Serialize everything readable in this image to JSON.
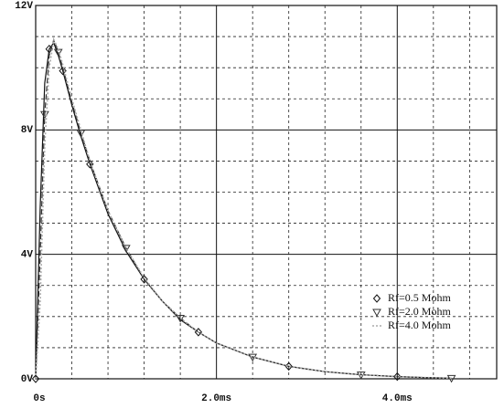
{
  "chart_data": {
    "type": "line",
    "x": [
      0,
      0.05,
      0.1,
      0.15,
      0.2,
      0.25,
      0.3,
      0.4,
      0.5,
      0.6,
      0.8,
      1.0,
      1.2,
      1.4,
      1.6,
      1.8,
      2.0,
      2.4,
      2.8,
      3.2,
      3.6,
      4.0,
      4.3,
      4.6
    ],
    "series": [
      {
        "name": "Rf=0.5 Mohm",
        "color": "#111111",
        "marker": "diamond",
        "dash": "none",
        "values": [
          0,
          5.5,
          9.5,
          10.6,
          10.8,
          10.4,
          9.9,
          8.8,
          7.8,
          6.9,
          5.3,
          4.1,
          3.2,
          2.5,
          1.9,
          1.5,
          1.15,
          0.7,
          0.4,
          0.23,
          0.13,
          0.07,
          0.04,
          0.02
        ]
      },
      {
        "name": "Rf=2.0 Mohm",
        "color": "#333333",
        "marker": "triangle",
        "dash": "6 3",
        "values": [
          0,
          4.0,
          8.5,
          10.4,
          10.9,
          10.5,
          10.0,
          8.9,
          7.9,
          7.0,
          5.4,
          4.2,
          3.2,
          2.5,
          1.95,
          1.5,
          1.15,
          0.7,
          0.4,
          0.23,
          0.13,
          0.07,
          0.04,
          0.02
        ]
      },
      {
        "name": "Rf=4.0 Mohm",
        "color": "#aaaaaa",
        "marker": null,
        "dash": "2 2",
        "values": [
          0,
          2.5,
          7.5,
          10.0,
          10.9,
          10.6,
          10.1,
          9.0,
          8.0,
          7.0,
          5.4,
          4.2,
          3.25,
          2.5,
          1.95,
          1.5,
          1.15,
          0.7,
          0.4,
          0.23,
          0.13,
          0.07,
          0.04,
          0.02
        ]
      }
    ],
    "xlim": [
      0,
      5.1
    ],
    "ylim": [
      0,
      12
    ],
    "xticks": [
      {
        "value": 0,
        "label": "0s"
      },
      {
        "value": 2,
        "label": "2.0ms"
      },
      {
        "value": 4,
        "label": "4.0ms"
      }
    ],
    "yticks": [
      {
        "value": 0,
        "label": "0V"
      },
      {
        "value": 4,
        "label": "4V"
      },
      {
        "value": 8,
        "label": "8V"
      },
      {
        "value": 12,
        "label": "12V"
      }
    ],
    "grid": true,
    "legend": "lower right"
  }
}
